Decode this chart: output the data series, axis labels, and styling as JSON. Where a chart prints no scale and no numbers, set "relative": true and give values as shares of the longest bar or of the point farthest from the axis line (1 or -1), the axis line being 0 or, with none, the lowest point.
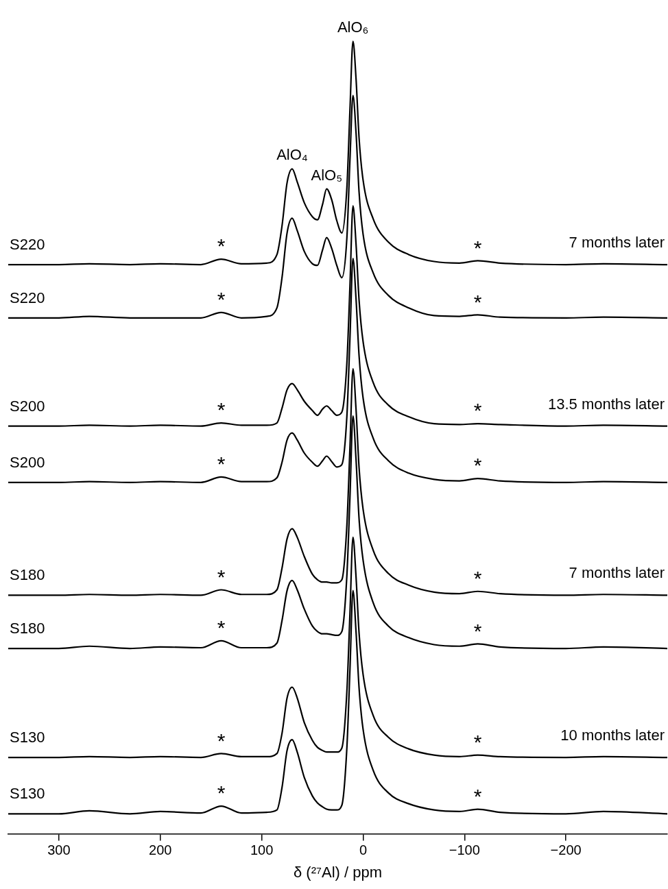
{
  "chart_data": {
    "type": "line",
    "relative": true,
    "xlabel": "δ (²⁷Al) / ppm",
    "xlim": [
      350,
      -300
    ],
    "xticks": [
      300,
      200,
      100,
      0,
      {
        "value": -100,
        "label": "−100"
      },
      {
        "value": -200,
        "label": "−200"
      }
    ],
    "tick_labels": "x",
    "grid": false,
    "legend": false,
    "marker": "none",
    "line_style": "solid",
    "x": [
      350,
      300,
      270,
      230,
      200,
      160,
      140,
      120,
      95,
      85,
      80,
      75,
      70,
      65,
      58,
      50,
      45,
      40,
      36,
      31,
      26,
      21,
      16,
      13,
      10,
      7,
      4,
      0,
      -10,
      -25,
      -45,
      -70,
      -95,
      -113,
      -135,
      -200,
      -237,
      -300
    ],
    "series": [
      {
        "name": "S220",
        "color": "#000000",
        "values": [
          0.711,
          0.711,
          0.712,
          0.711,
          0.712,
          0.711,
          0.718,
          0.712,
          0.713,
          0.724,
          0.761,
          0.817,
          0.835,
          0.818,
          0.791,
          0.773,
          0.769,
          0.789,
          0.809,
          0.795,
          0.768,
          0.752,
          0.811,
          0.911,
          1.0,
          0.952,
          0.875,
          0.82,
          0.77,
          0.74,
          0.724,
          0.715,
          0.713,
          0.716,
          0.713,
          0.711,
          0.712,
          0.711
        ]
      },
      {
        "name": "S220",
        "color": "#000000",
        "values": [
          0.642,
          0.642,
          0.644,
          0.642,
          0.642,
          0.642,
          0.649,
          0.642,
          0.644,
          0.655,
          0.694,
          0.752,
          0.771,
          0.755,
          0.728,
          0.712,
          0.71,
          0.73,
          0.746,
          0.732,
          0.71,
          0.694,
          0.746,
          0.846,
          0.93,
          0.882,
          0.805,
          0.75,
          0.7,
          0.671,
          0.655,
          0.645,
          0.644,
          0.646,
          0.643,
          0.642,
          0.643,
          0.642
        ]
      },
      {
        "name": "S200",
        "color": "#000000",
        "values": [
          0.502,
          0.502,
          0.503,
          0.502,
          0.503,
          0.502,
          0.506,
          0.503,
          0.503,
          0.506,
          0.525,
          0.549,
          0.557,
          0.549,
          0.534,
          0.522,
          0.516,
          0.524,
          0.528,
          0.522,
          0.516,
          0.52,
          0.584,
          0.683,
          0.787,
          0.738,
          0.665,
          0.611,
          0.558,
          0.529,
          0.514,
          0.505,
          0.504,
          0.505,
          0.504,
          0.502,
          0.503,
          0.502
        ]
      },
      {
        "name": "S200",
        "color": "#000000",
        "values": [
          0.429,
          0.429,
          0.43,
          0.429,
          0.43,
          0.429,
          0.436,
          0.43,
          0.43,
          0.435,
          0.455,
          0.484,
          0.493,
          0.484,
          0.467,
          0.455,
          0.45,
          0.457,
          0.463,
          0.456,
          0.449,
          0.452,
          0.515,
          0.615,
          0.719,
          0.667,
          0.593,
          0.538,
          0.486,
          0.457,
          0.441,
          0.433,
          0.431,
          0.434,
          0.431,
          0.429,
          0.43,
          0.429
        ]
      },
      {
        "name": "S180",
        "color": "#000000",
        "values": [
          0.283,
          0.283,
          0.284,
          0.283,
          0.284,
          0.283,
          0.29,
          0.284,
          0.284,
          0.29,
          0.318,
          0.356,
          0.369,
          0.358,
          0.333,
          0.31,
          0.303,
          0.3,
          0.3,
          0.299,
          0.299,
          0.303,
          0.374,
          0.474,
          0.576,
          0.524,
          0.448,
          0.394,
          0.341,
          0.311,
          0.296,
          0.287,
          0.285,
          0.288,
          0.285,
          0.283,
          0.284,
          0.283
        ]
      },
      {
        "name": "S180",
        "color": "#000000",
        "values": [
          0.214,
          0.214,
          0.217,
          0.214,
          0.216,
          0.215,
          0.224,
          0.215,
          0.215,
          0.221,
          0.25,
          0.289,
          0.302,
          0.29,
          0.265,
          0.243,
          0.236,
          0.233,
          0.233,
          0.232,
          0.231,
          0.236,
          0.309,
          0.409,
          0.515,
          0.459,
          0.382,
          0.328,
          0.273,
          0.243,
          0.228,
          0.219,
          0.217,
          0.22,
          0.216,
          0.214,
          0.216,
          0.214
        ]
      },
      {
        "name": "S130",
        "color": "#000000",
        "values": [
          0.073,
          0.073,
          0.074,
          0.073,
          0.074,
          0.073,
          0.078,
          0.074,
          0.074,
          0.078,
          0.104,
          0.15,
          0.164,
          0.15,
          0.118,
          0.095,
          0.086,
          0.082,
          0.08,
          0.08,
          0.08,
          0.085,
          0.159,
          0.259,
          0.358,
          0.307,
          0.234,
          0.18,
          0.127,
          0.099,
          0.084,
          0.076,
          0.074,
          0.076,
          0.074,
          0.073,
          0.074,
          0.073
        ]
      },
      {
        "name": "S130",
        "color": "#000000",
        "values": [
          0,
          0,
          0.004,
          0,
          0.003,
          0.001,
          0.01,
          0.001,
          0.002,
          0.005,
          0.034,
          0.082,
          0.096,
          0.08,
          0.047,
          0.023,
          0.014,
          0.009,
          0.006,
          0.005,
          0.005,
          0.011,
          0.086,
          0.186,
          0.289,
          0.236,
          0.163,
          0.109,
          0.056,
          0.027,
          0.013,
          0.005,
          0.003,
          0.006,
          0.002,
          0,
          0.003,
          0
        ]
      }
    ],
    "annotations": [
      {
        "text": "AlO₄",
        "x": 70,
        "y": 0.835
      },
      {
        "text": "AlO₅",
        "x": 36,
        "y": 0.809
      },
      {
        "text": "AlO₆",
        "x": 10,
        "y": 1.0
      },
      {
        "text": "7 months later",
        "x": -300,
        "y": 0.711
      },
      {
        "text": "13.5 months later",
        "x": -300,
        "y": 0.502
      },
      {
        "text": "7 months later",
        "x": -300,
        "y": 0.283
      },
      {
        "text": "10 months later",
        "x": -300,
        "y": 0.073
      },
      {
        "text": "*",
        "x": 140,
        "y": 0.718
      },
      {
        "text": "*",
        "x": -113,
        "y": 0.716
      },
      {
        "text": "*",
        "x": 140,
        "y": 0.649
      },
      {
        "text": "*",
        "x": -113,
        "y": 0.646
      },
      {
        "text": "*",
        "x": 140,
        "y": 0.506
      },
      {
        "text": "*",
        "x": -113,
        "y": 0.505
      },
      {
        "text": "*",
        "x": 140,
        "y": 0.436
      },
      {
        "text": "*",
        "x": -113,
        "y": 0.434
      },
      {
        "text": "*",
        "x": 140,
        "y": 0.29
      },
      {
        "text": "*",
        "x": -113,
        "y": 0.288
      },
      {
        "text": "*",
        "x": 140,
        "y": 0.224
      },
      {
        "text": "*",
        "x": -113,
        "y": 0.22
      },
      {
        "text": "*",
        "x": 140,
        "y": 0.078
      },
      {
        "text": "*",
        "x": -113,
        "y": 0.076
      },
      {
        "text": "*",
        "x": 140,
        "y": 0.01
      },
      {
        "text": "*",
        "x": -113,
        "y": 0.006
      }
    ]
  }
}
